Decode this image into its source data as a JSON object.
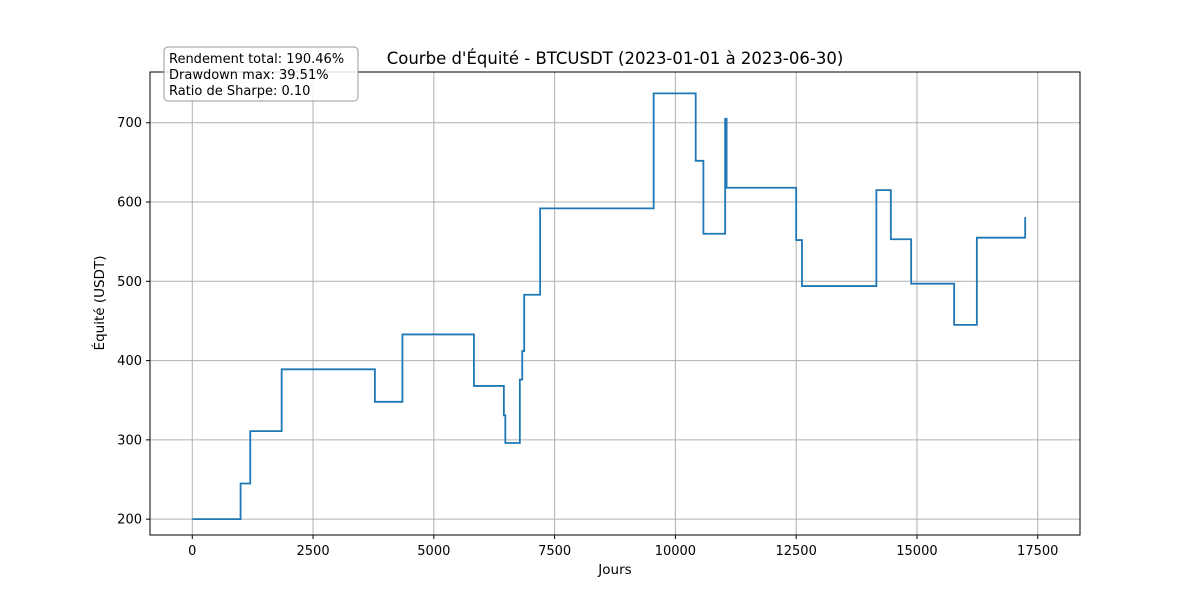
{
  "chart_data": {
    "type": "line",
    "title": "Courbe d'Équité - BTCUSDT (2023-01-01 à 2023-06-30)",
    "xlabel": "Jours",
    "ylabel": "Équité (USDT)",
    "xlim": [
      -875,
      18375
    ],
    "ylim": [
      180,
      764
    ],
    "xticks": [
      0,
      2500,
      5000,
      7500,
      10000,
      12500,
      15000,
      17500
    ],
    "yticks": [
      200,
      300,
      400,
      500,
      600,
      700
    ],
    "grid": true,
    "color": "#1f77b4",
    "stats": [
      "Rendement total: 190.46%",
      "Drawdown max: 39.51%",
      "Ratio de Sharpe: 0.10"
    ],
    "series": [
      {
        "x": [
          0,
          1000,
          1000,
          1200,
          1200,
          1850,
          1850,
          3780,
          3780,
          4350,
          4350,
          5830,
          5830,
          6450,
          6450,
          6480,
          6480,
          6780,
          6780,
          6830,
          6830,
          6870,
          6870,
          7200,
          7200,
          9550,
          9550,
          10420,
          10420,
          10580,
          10580,
          11030,
          11030,
          11060,
          11060,
          12500,
          12500,
          12620,
          12620,
          14160,
          14160,
          14460,
          14460,
          14880,
          14880,
          15770,
          15770,
          16240,
          16240,
          17240,
          17240
        ],
        "y": [
          200,
          200,
          245,
          245,
          311,
          311,
          389,
          389,
          348,
          348,
          433,
          433,
          368,
          368,
          331,
          331,
          296,
          296,
          376,
          376,
          412,
          412,
          483,
          483,
          592,
          592,
          737,
          737,
          652,
          652,
          560,
          560,
          705,
          705,
          618,
          618,
          552,
          552,
          494,
          494,
          615,
          615,
          553,
          553,
          497,
          497,
          445,
          445,
          555,
          555,
          581
        ]
      }
    ]
  }
}
